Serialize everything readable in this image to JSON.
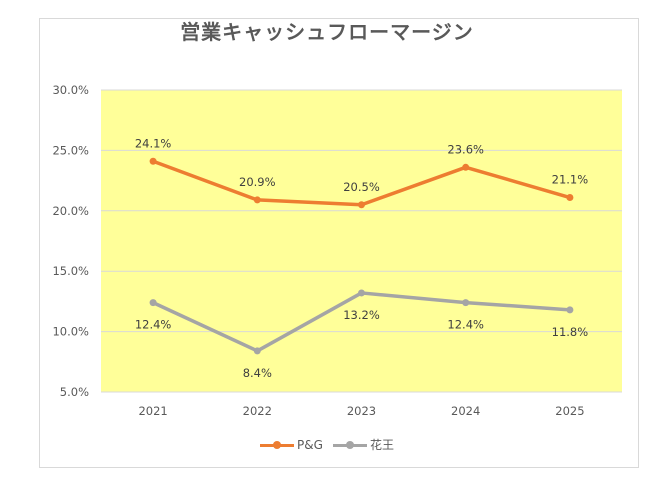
{
  "chart_data": {
    "type": "line",
    "title": "営業キャッシュフローマージン",
    "categories": [
      "2021",
      "2022",
      "2023",
      "2024",
      "2025"
    ],
    "series": [
      {
        "name": "P&G",
        "color": "#ed7d31",
        "values": [
          24.1,
          20.9,
          20.5,
          23.6,
          21.1
        ],
        "labels": [
          "24.1%",
          "20.9%",
          "20.5%",
          "23.6%",
          "21.1%"
        ],
        "label_position": "above"
      },
      {
        "name": "花王",
        "color": "#a5a5a5",
        "values": [
          12.4,
          8.4,
          13.2,
          12.4,
          11.8
        ],
        "labels": [
          "12.4%",
          "8.4%",
          "13.2%",
          "12.4%",
          "11.8%"
        ],
        "label_position": "below"
      }
    ],
    "ylim": [
      5,
      30
    ],
    "yticks": [
      5,
      10,
      15,
      20,
      25,
      30
    ],
    "ytick_labels": [
      "5.0%",
      "10.0%",
      "15.0%",
      "20.0%",
      "25.0%",
      "30.0%"
    ],
    "xlabel": "",
    "ylabel": "",
    "grid": true,
    "legend": "bottom",
    "plot_background": "#ffff99",
    "gridline_color": "#d9d9d9"
  }
}
